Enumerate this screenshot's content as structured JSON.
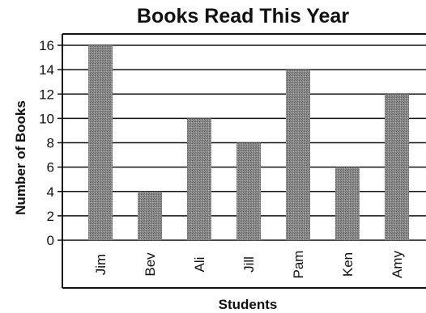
{
  "chart_data": {
    "type": "bar",
    "title": "Books Read This Year",
    "xlabel": "Students",
    "ylabel": "Number of Books",
    "categories": [
      "Jim",
      "Bev",
      "Ali",
      "Jill",
      "Pam",
      "Ken",
      "Amy"
    ],
    "values": [
      16,
      4,
      10,
      8,
      14,
      6,
      12
    ],
    "ylim": [
      0,
      16
    ],
    "yticks": [
      0,
      2,
      4,
      6,
      8,
      10,
      12,
      14,
      16
    ],
    "grid": true,
    "bar_color": "#808080",
    "grid_color": "#111111"
  }
}
